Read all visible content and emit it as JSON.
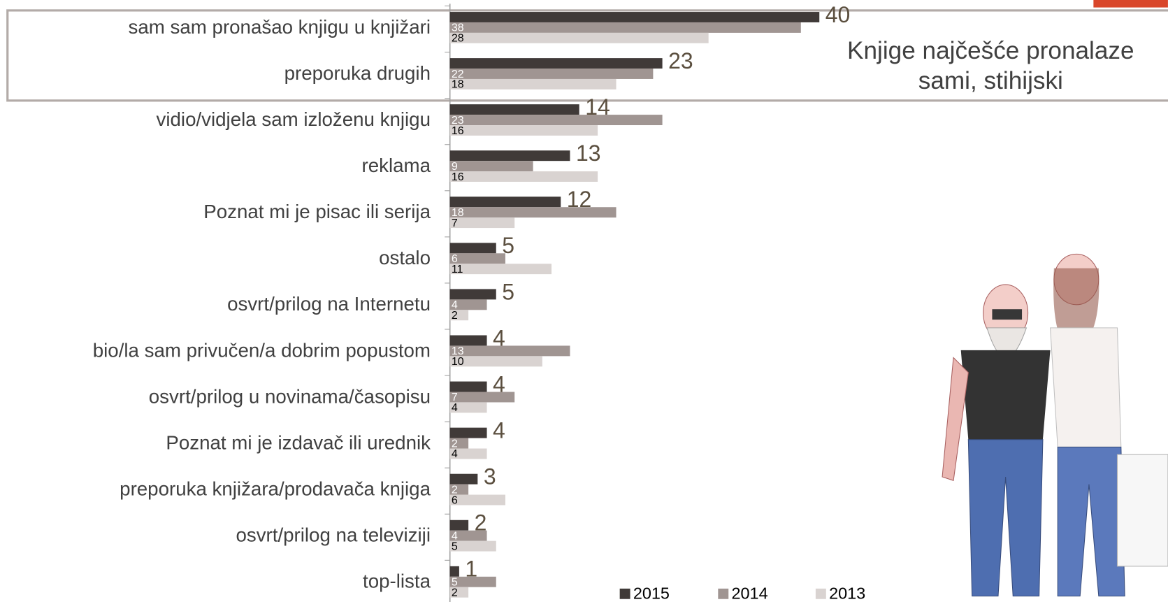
{
  "chart_data": {
    "type": "hbar",
    "annotation": "Knjige najčešće pronalaze sami, stihijski",
    "categories": [
      "sam sam pronašao knjigu u knjižari",
      "preporuka drugih",
      "vidio/vidjela sam izloženu knjigu",
      "reklama",
      "Poznat mi je pisac ili serija",
      "ostalo",
      "osvrt/prilog na Internetu",
      "bio/la sam privučen/a dobrim popustom",
      "osvrt/prilog u novinama/časopisu",
      "Poznat mi je izdavač ili urednik",
      "preporuka knjižara/prodavača knjiga",
      "osvrt/prilog na televiziji",
      "top-lista"
    ],
    "series": [
      {
        "name": "2015",
        "color": "#403a38",
        "values": [
          40,
          23,
          14,
          13,
          12,
          5,
          5,
          4,
          4,
          4,
          3,
          2,
          1
        ]
      },
      {
        "name": "2014",
        "color": "#a09592",
        "values": [
          38,
          22,
          23,
          9,
          18,
          6,
          4,
          13,
          7,
          2,
          2,
          4,
          5
        ]
      },
      {
        "name": "2013",
        "color": "#d9d3d1",
        "values": [
          28,
          18,
          16,
          16,
          7,
          11,
          2,
          10,
          4,
          4,
          6,
          5,
          2
        ]
      }
    ],
    "xlim": [
      0,
      40
    ],
    "legend": "bottom"
  }
}
